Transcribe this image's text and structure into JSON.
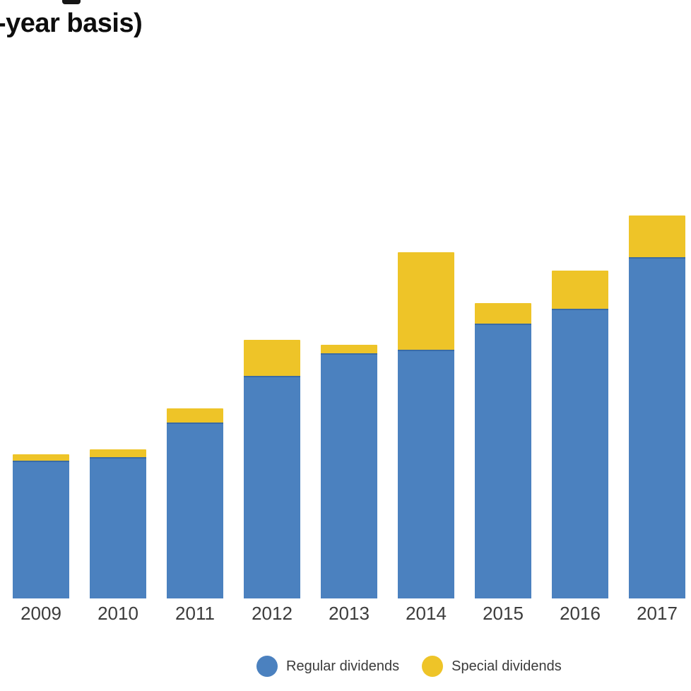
{
  "title": "-year basis)",
  "legend": {
    "regular_label": "Regular dividends",
    "special_label": "Special dividends"
  },
  "colors": {
    "regular": "#4B81BF",
    "regular_top_edge": "#3A6BA5",
    "special": "#EEC428",
    "title_text": "#0d0d0d",
    "axis_label_text": "#3c3c3c"
  },
  "chart_data": {
    "type": "bar",
    "stacked": true,
    "title": "-year basis)",
    "categories": [
      "2009",
      "2010",
      "2011",
      "2012",
      "2013",
      "2014",
      "2015",
      "2016",
      "2017"
    ],
    "series": [
      {
        "name": "Regular dividends",
        "color": "#4B81BF",
        "values": [
          195,
          200,
          249,
          315,
          347,
          352,
          389,
          410,
          483
        ]
      },
      {
        "name": "Special dividends",
        "color": "#EEC428",
        "values": [
          9,
          11,
          20,
          51,
          12,
          138,
          29,
          54,
          59
        ]
      }
    ],
    "value_axis_shown": false,
    "units_note": "relative units; chart has no visible value axis or gridlines",
    "xlabel": "",
    "ylabel": "",
    "grid": false,
    "legend_position": "bottom"
  }
}
